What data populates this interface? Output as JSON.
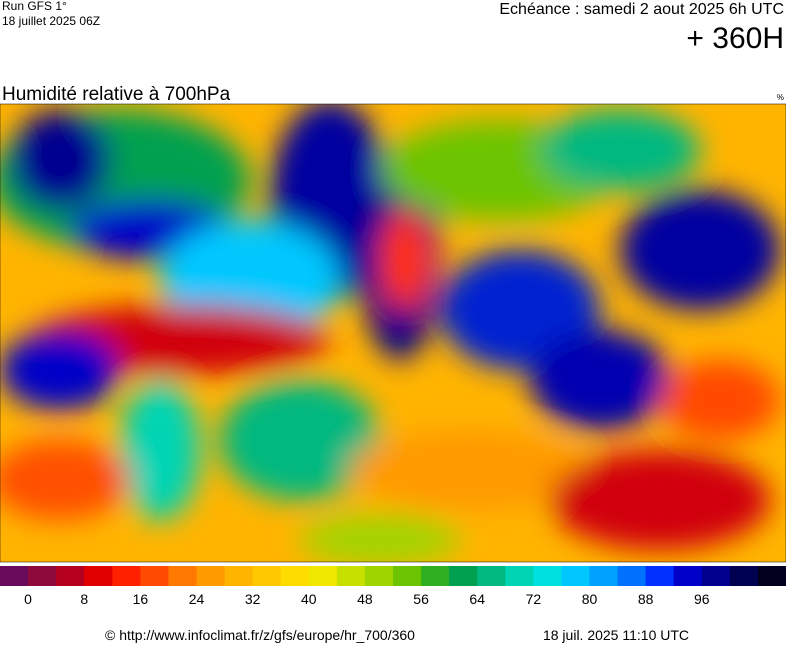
{
  "header": {
    "run": "Run GFS 1°",
    "run_date": "18 juillet 2025 06Z",
    "valid": "Echéance : samedi 2 aout 2025 6h UTC",
    "lead": "+ 360H"
  },
  "map": {
    "title": "Humidité relative à 700hPa",
    "unit": "%"
  },
  "colorbar": {
    "ticks": [
      0,
      8,
      16,
      24,
      32,
      40,
      48,
      56,
      64,
      72,
      80,
      88,
      96
    ],
    "step": 4,
    "colors": [
      "#6a0a5a",
      "#8c0a3c",
      "#b4001e",
      "#e00000",
      "#ff2000",
      "#ff4a00",
      "#ff7800",
      "#ff9a00",
      "#ffb400",
      "#ffc800",
      "#ffdc00",
      "#f0e800",
      "#c8e000",
      "#a0d400",
      "#6cc400",
      "#30b020",
      "#00a050",
      "#00b880",
      "#00d4b4",
      "#00e0e0",
      "#00c8ff",
      "#00a0ff",
      "#0070ff",
      "#0030ff",
      "#0000c8",
      "#00008c",
      "#000050",
      "#00001e"
    ]
  },
  "footer": {
    "url": "© http://www.infoclimat.fr/z/gfs/europe/hr_700/360",
    "stamp": "18 juil. 2025 11:10 UTC"
  }
}
